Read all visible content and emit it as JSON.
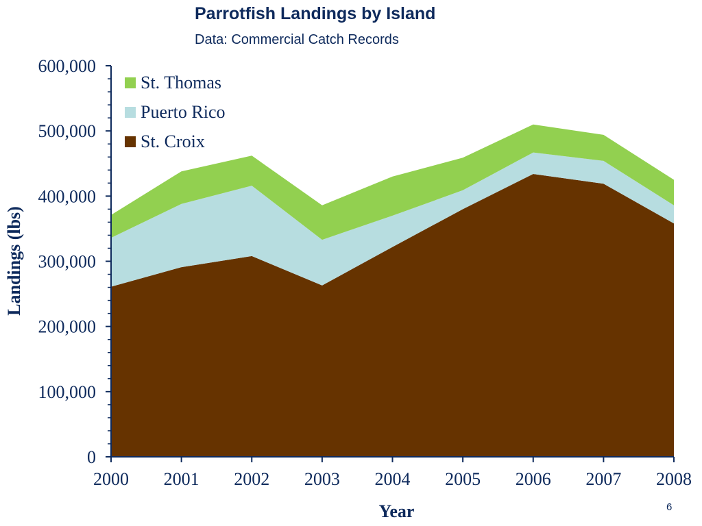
{
  "page": {
    "title": "Parrotfish Landings by Island",
    "subtitle": "Data: Commercial Catch Records",
    "page_number": "6"
  },
  "colors": {
    "st_thomas": "#92d050",
    "puerto_rico": "#b7dde0",
    "st_croix": "#663300",
    "axis": "#0e2a5c",
    "text": "#0e2a5c"
  },
  "chart_data": {
    "type": "area",
    "stacked": true,
    "title": "Parrotfish Landings by Island",
    "subtitle": "Data: Commercial Catch Records",
    "xlabel": "Year",
    "ylabel": "Landings (lbs)",
    "x": [
      2000,
      2001,
      2002,
      2003,
      2004,
      2005,
      2006,
      2007,
      2008
    ],
    "x_tick_labels": [
      "2000",
      "2001",
      "2002",
      "2003",
      "2004",
      "2005",
      "2006",
      "2007",
      "2008"
    ],
    "ylim": [
      0,
      600000
    ],
    "y_ticks": [
      0,
      100000,
      200000,
      300000,
      400000,
      500000,
      600000
    ],
    "y_tick_labels": [
      "0",
      "100,000",
      "200,000",
      "300,000",
      "400,000",
      "500,000",
      "600,000"
    ],
    "legend_position": "top-left",
    "grid": false,
    "series": [
      {
        "name": "St. Croix",
        "color": "#663300",
        "values": [
          261000,
          291000,
          308000,
          263000,
          322000,
          380000,
          434000,
          419000,
          358000
        ]
      },
      {
        "name": "Puerto Rico",
        "color": "#b7dde0",
        "values": [
          75000,
          97000,
          108000,
          70000,
          48000,
          29000,
          33000,
          35000,
          28000
        ]
      },
      {
        "name": "St. Thomas",
        "color": "#92d050",
        "values": [
          35000,
          50000,
          46000,
          53000,
          60000,
          50000,
          43000,
          40000,
          39000
        ]
      }
    ],
    "legend": [
      "St. Thomas",
      "Puerto Rico",
      "St. Croix"
    ]
  }
}
